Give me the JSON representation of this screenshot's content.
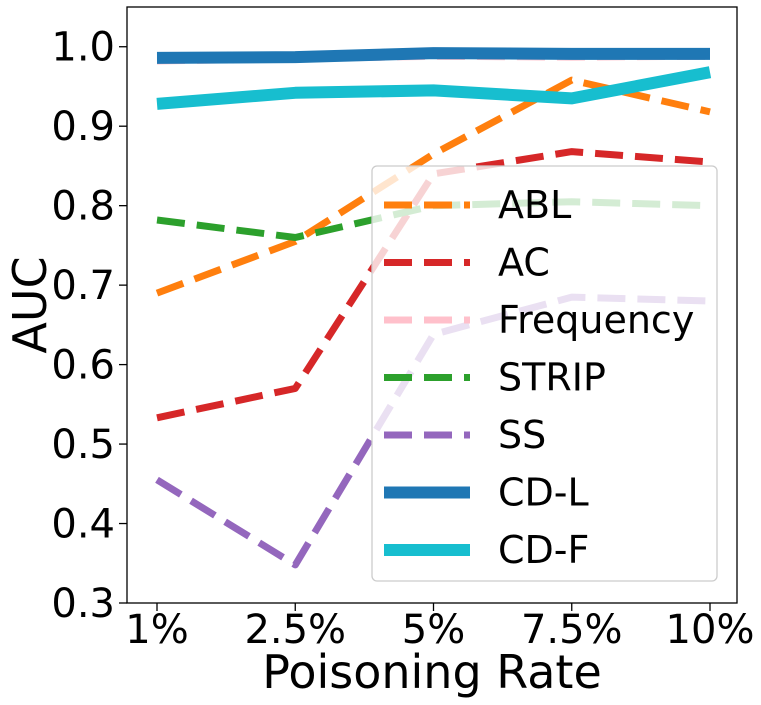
{
  "chart_data": {
    "type": "line",
    "title": "",
    "xlabel": "Poisoning Rate",
    "ylabel": "AUC",
    "categories": [
      "1%",
      "2.5%",
      "5%",
      "7.5%",
      "10%"
    ],
    "ylim": [
      0.3,
      1.05
    ],
    "yticks": [
      "0.3",
      "0.4",
      "0.5",
      "0.6",
      "0.7",
      "0.8",
      "0.9",
      "1.0"
    ],
    "legend_position": "lower-right",
    "grid": false,
    "series": [
      {
        "name": "ABL",
        "values": [
          0.69,
          0.755,
          0.865,
          0.958,
          0.918
        ],
        "color": "#ff7f0e",
        "style": "dashed"
      },
      {
        "name": "AC",
        "values": [
          0.533,
          0.57,
          0.84,
          0.868,
          0.855
        ],
        "color": "#d62728",
        "style": "dashed"
      },
      {
        "name": "Frequency",
        "values": [
          0.982,
          0.985,
          0.988,
          0.987,
          0.988
        ],
        "color": "#ffc0cb",
        "style": "dashed"
      },
      {
        "name": "STRIP",
        "values": [
          0.782,
          0.76,
          0.8,
          0.805,
          0.8
        ],
        "color": "#2ca02c",
        "style": "dashed"
      },
      {
        "name": "SS",
        "values": [
          0.455,
          0.348,
          0.638,
          0.685,
          0.68
        ],
        "color": "#9467bd",
        "style": "dashed"
      },
      {
        "name": "CD-L",
        "values": [
          0.986,
          0.987,
          0.992,
          0.991,
          0.991
        ],
        "color": "#1f77b4",
        "style": "solid"
      },
      {
        "name": "CD-F",
        "values": [
          0.928,
          0.942,
          0.945,
          0.935,
          0.968
        ],
        "color": "#17becf",
        "style": "solid"
      }
    ]
  }
}
